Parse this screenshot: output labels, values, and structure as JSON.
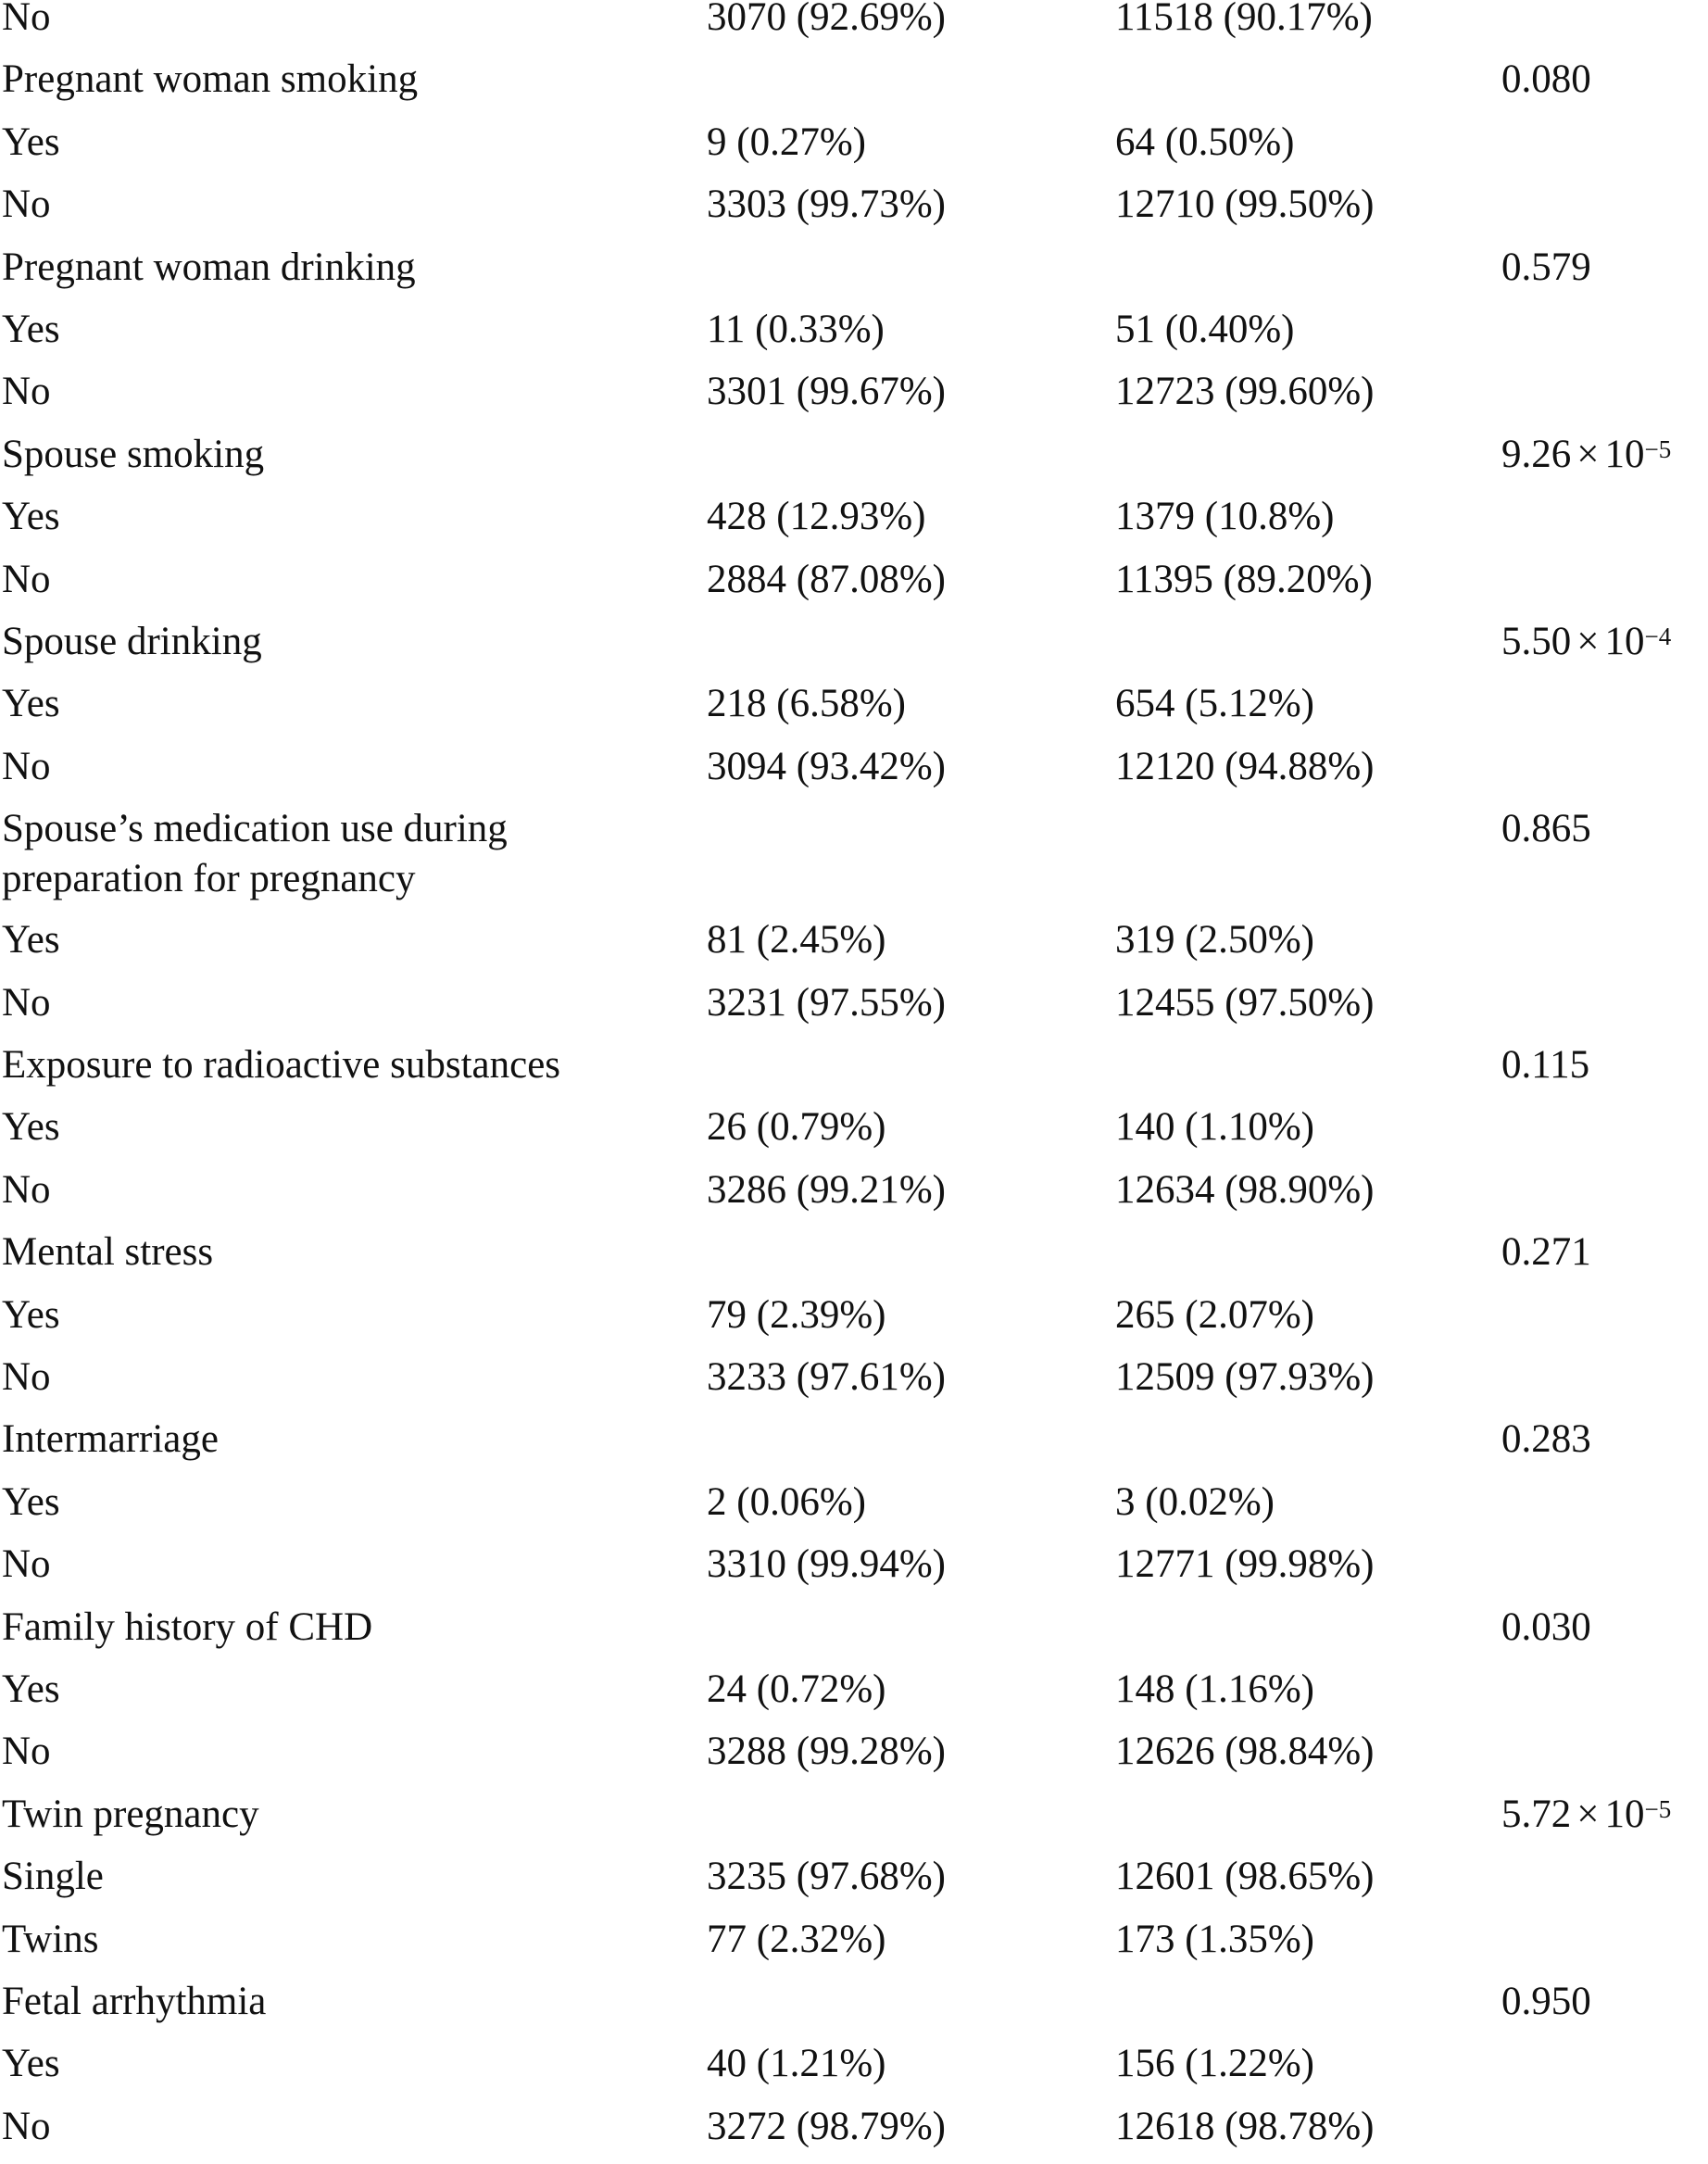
{
  "rows": [
    {
      "label": "No",
      "case": "3070 (92.69%)",
      "control": "11518 (90.17%)",
      "p": ""
    },
    {
      "label": "Pregnant woman smoking",
      "case": "",
      "control": "",
      "p": "0.080"
    },
    {
      "label": "Yes",
      "case": "9 (0.27%)",
      "control": "64 (0.50%)",
      "p": ""
    },
    {
      "label": "No",
      "case": "3303 (99.73%)",
      "control": "12710 (99.50%)",
      "p": ""
    },
    {
      "label": "Pregnant woman drinking",
      "case": "",
      "control": "",
      "p": "0.579"
    },
    {
      "label": "Yes",
      "case": "11 (0.33%)",
      "control": "51 (0.40%)",
      "p": ""
    },
    {
      "label": "No",
      "case": "3301 (99.67%)",
      "control": "12723 (99.60%)",
      "p": ""
    },
    {
      "label": "Spouse smoking",
      "case": "",
      "control": "",
      "p_mant": "9.26",
      "p_times": "×",
      "p_base": "10",
      "p_exp": "−5"
    },
    {
      "label": "Yes",
      "case": "428 (12.93%)",
      "control": "1379 (10.8%)",
      "p": ""
    },
    {
      "label": "No",
      "case": "2884 (87.08%)",
      "control": "11395 (89.20%)",
      "p": ""
    },
    {
      "label": "Spouse drinking",
      "case": "",
      "control": "",
      "p_mant": "5.50",
      "p_times": "×",
      "p_base": "10",
      "p_exp": "−4"
    },
    {
      "label": "Yes",
      "case": "218 (6.58%)",
      "control": "654 (5.12%)",
      "p": ""
    },
    {
      "label": "No",
      "case": "3094 (93.42%)",
      "control": "12120 (94.88%)",
      "p": ""
    },
    {
      "label": "Spouse’s medication use during preparation for pregnancy",
      "case": "",
      "control": "",
      "p": "0.865"
    },
    {
      "label": "Yes",
      "case": "81 (2.45%)",
      "control": "319 (2.50%)",
      "p": ""
    },
    {
      "label": "No",
      "case": "3231 (97.55%)",
      "control": "12455 (97.50%)",
      "p": ""
    },
    {
      "label": "Exposure to radioactive substances",
      "case": "",
      "control": "",
      "p": "0.115"
    },
    {
      "label": "Yes",
      "case": "26 (0.79%)",
      "control": "140 (1.10%)",
      "p": ""
    },
    {
      "label": "No",
      "case": "3286 (99.21%)",
      "control": "12634 (98.90%)",
      "p": ""
    },
    {
      "label": "Mental stress",
      "case": "",
      "control": "",
      "p": "0.271"
    },
    {
      "label": "Yes",
      "case": "79 (2.39%)",
      "control": "265 (2.07%)",
      "p": ""
    },
    {
      "label": "No",
      "case": "3233 (97.61%)",
      "control": "12509 (97.93%)",
      "p": ""
    },
    {
      "label": "Intermarriage",
      "case": "",
      "control": "",
      "p": "0.283"
    },
    {
      "label": "Yes",
      "case": "2 (0.06%)",
      "control": "3 (0.02%)",
      "p": ""
    },
    {
      "label": "No",
      "case": "3310 (99.94%)",
      "control": "12771 (99.98%)",
      "p": ""
    },
    {
      "label": "Family history of CHD",
      "case": "",
      "control": "",
      "p": "0.030"
    },
    {
      "label": "Yes",
      "case": "24 (0.72%)",
      "control": "148 (1.16%)",
      "p": ""
    },
    {
      "label": "No",
      "case": "3288 (99.28%)",
      "control": "12626 (98.84%)",
      "p": ""
    },
    {
      "label": "Twin pregnancy",
      "case": "",
      "control": "",
      "p_mant": "5.72",
      "p_times": "×",
      "p_base": "10",
      "p_exp": "−5"
    },
    {
      "label": "Single",
      "case": "3235 (97.68%)",
      "control": "12601 (98.65%)",
      "p": ""
    },
    {
      "label": "Twins",
      "case": "77 (2.32%)",
      "control": "173 (1.35%)",
      "p": ""
    },
    {
      "label": "Fetal arrhythmia",
      "case": "",
      "control": "",
      "p": "0.950"
    },
    {
      "label": "Yes",
      "case": "40 (1.21%)",
      "control": "156 (1.22%)",
      "p": ""
    },
    {
      "label": "No",
      "case": "3272 (98.79%)",
      "control": "12618 (98.78%)",
      "p": ""
    }
  ]
}
